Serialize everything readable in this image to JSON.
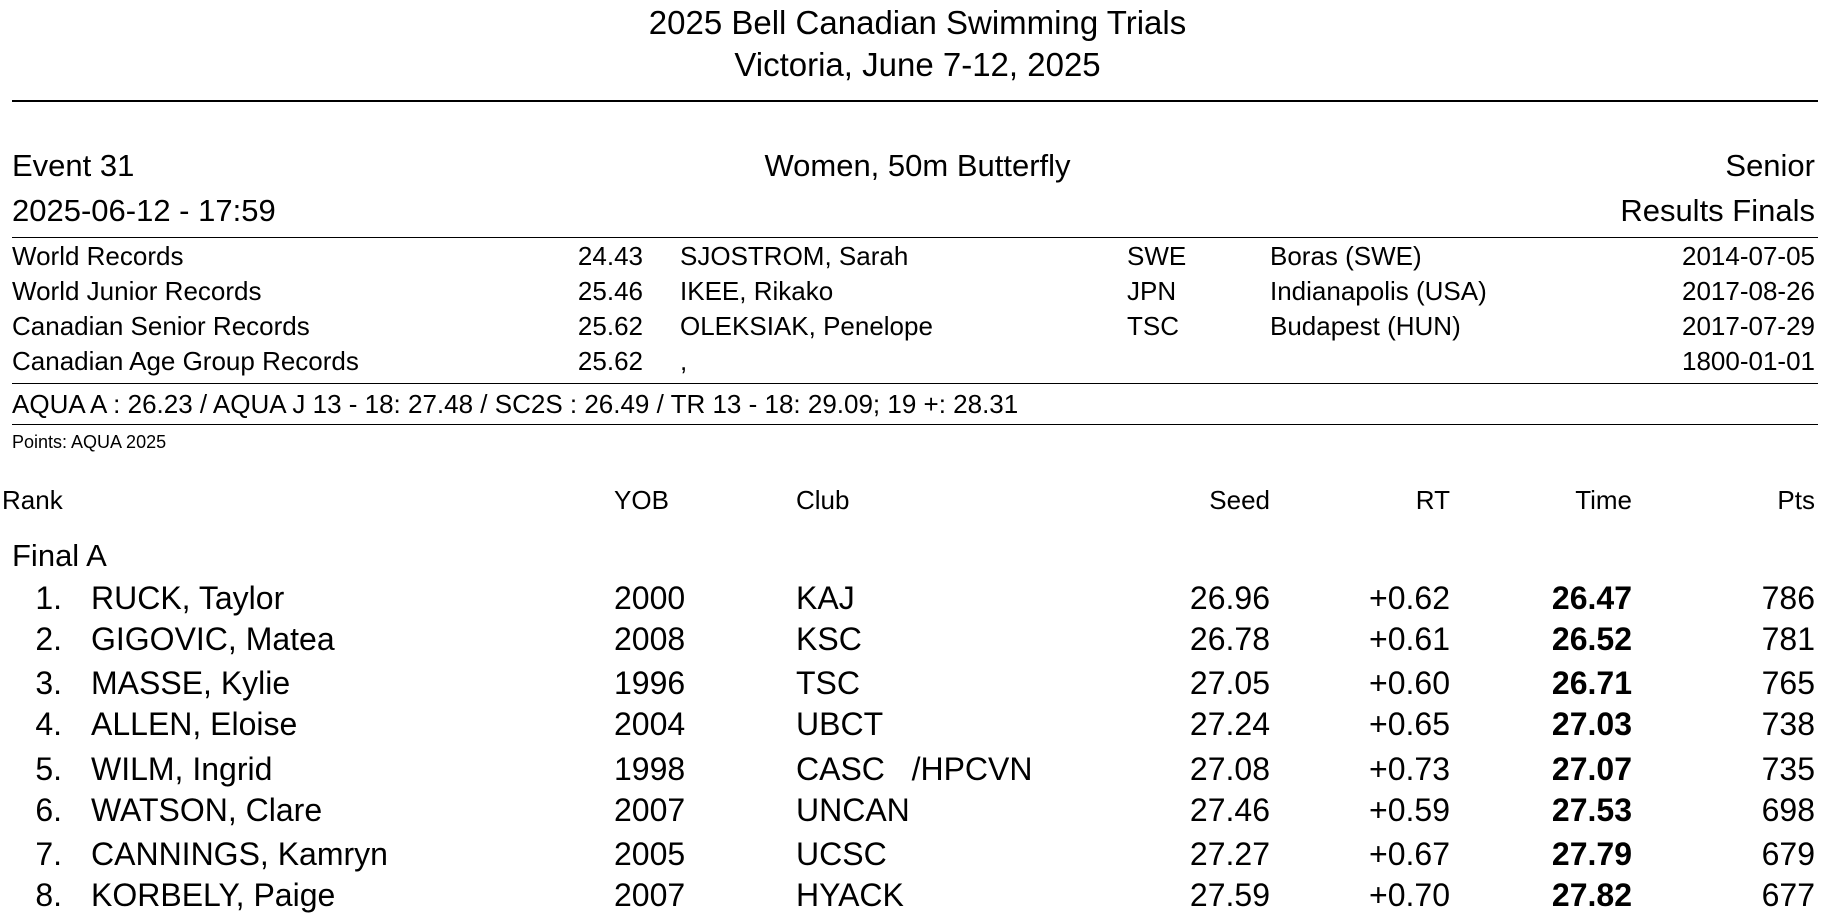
{
  "meet": {
    "title": "2025 Bell Canadian Swimming Trials",
    "subtitle": "Victoria, June 7-12, 2025"
  },
  "event": {
    "number": "Event 31",
    "name": "Women, 50m Butterfly",
    "category": "Senior",
    "datetime": "2025-06-12 - 17:59",
    "phase": "Results Finals"
  },
  "records": [
    {
      "label": "World Records",
      "time": "24.43",
      "holder": "SJOSTROM, Sarah",
      "nation": "SWE",
      "place": "Boras (SWE)",
      "date": "2014-07-05"
    },
    {
      "label": "World Junior Records",
      "time": "25.46",
      "holder": "IKEE, Rikako",
      "nation": "JPN",
      "place": "Indianapolis (USA)",
      "date": "2017-08-26"
    },
    {
      "label": "Canadian Senior Records",
      "time": "25.62",
      "holder": "OLEKSIAK, Penelope",
      "nation": "TSC",
      "place": "Budapest (HUN)",
      "date": "2017-07-29"
    },
    {
      "label": "Canadian Age Group Records",
      "time": "25.62",
      "holder": ",",
      "nation": "",
      "place": "",
      "date": "1800-01-01"
    }
  ],
  "qualifying_standards": "AQUA A : 26.23  /  AQUA J 13 - 18: 27.48  /  SC2S : 26.49  /  TR 13 - 18: 29.09;  19 +: 28.31",
  "points_note": "Points: AQUA 2025",
  "columns": {
    "rank": "Rank",
    "yob": "YOB",
    "club": "Club",
    "seed": "Seed",
    "rt": "RT",
    "time": "Time",
    "pts": "Pts"
  },
  "group_label": "Final A",
  "results": [
    {
      "rank": "1.",
      "name": "RUCK, Taylor",
      "yob": "2000",
      "club": "KAJ",
      "seed": "26.96",
      "rt": "+0.62",
      "time": "26.47",
      "pts": "786"
    },
    {
      "rank": "2.",
      "name": "GIGOVIC, Matea",
      "yob": "2008",
      "club": "KSC",
      "seed": "26.78",
      "rt": "+0.61",
      "time": "26.52",
      "pts": "781"
    },
    {
      "rank": "3.",
      "name": "MASSE, Kylie",
      "yob": "1996",
      "club": "TSC",
      "seed": "27.05",
      "rt": "+0.60",
      "time": "26.71",
      "pts": "765"
    },
    {
      "rank": "4.",
      "name": "ALLEN, Eloise",
      "yob": "2004",
      "club": "UBCT",
      "seed": "27.24",
      "rt": "+0.65",
      "time": "27.03",
      "pts": "738"
    },
    {
      "rank": "5.",
      "name": "WILM, Ingrid",
      "yob": "1998",
      "club": "CASC   /HPCVN",
      "seed": "27.08",
      "rt": "+0.73",
      "time": "27.07",
      "pts": "735"
    },
    {
      "rank": "6.",
      "name": "WATSON, Clare",
      "yob": "2007",
      "club": "UNCAN",
      "seed": "27.46",
      "rt": "+0.59",
      "time": "27.53",
      "pts": "698"
    },
    {
      "rank": "7.",
      "name": "CANNINGS, Kamryn",
      "yob": "2005",
      "club": "UCSC",
      "seed": "27.27",
      "rt": "+0.67",
      "time": "27.79",
      "pts": "679"
    },
    {
      "rank": "8.",
      "name": "KORBELY, Paige",
      "yob": "2007",
      "club": "HYACK",
      "seed": "27.59",
      "rt": "+0.70",
      "time": "27.82",
      "pts": "677"
    }
  ]
}
